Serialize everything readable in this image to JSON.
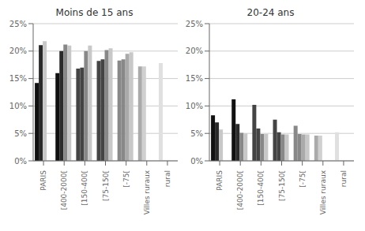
{
  "chart_data": [
    {
      "type": "bar",
      "title": "Moins de 15 ans",
      "categories": [
        "PARIS",
        "[400-2000[",
        "[150-400[",
        "[75-150[",
        "[-75[",
        "Villes ruraux",
        "rural"
      ],
      "ylim": [
        0,
        0.25
      ],
      "yticks": [
        {
          "value": 0,
          "label": "0%"
        },
        {
          "value": 0.05,
          "label": "5%"
        },
        {
          "value": 0.1,
          "label": "10%"
        },
        {
          "value": 0.15,
          "label": "15%"
        },
        {
          "value": 0.2,
          "label": "20%"
        },
        {
          "value": 0.25,
          "label": "25%"
        }
      ],
      "grid": true,
      "series": [
        {
          "values": [
            0.142,
            0.16,
            0.168,
            0.182,
            0.183,
            0.172,
            0.178
          ],
          "colors": [
            "#111111",
            "#111111",
            "#444444",
            "#444444",
            "#888888",
            "#aaaaaa",
            "#e0e0e0"
          ]
        },
        {
          "values": [
            0.211,
            0.2,
            0.17,
            0.185,
            0.185,
            0.172,
            null
          ],
          "colors": [
            "#2a2a2a",
            "#2a2a2a",
            "#444444",
            "#444444",
            "#888888",
            "#d0d0d0",
            null
          ]
        },
        {
          "values": [
            0.218,
            0.212,
            0.2,
            0.202,
            0.195,
            null,
            null
          ],
          "colors": [
            "#c8c8c8",
            "#888888",
            "#888888",
            "#888888",
            "#aaaaaa",
            null,
            null
          ]
        },
        {
          "values": [
            null,
            0.21,
            0.21,
            0.205,
            0.198,
            null,
            null
          ],
          "colors": [
            null,
            "#c8c8c8",
            "#c8c8c8",
            "#c8c8c8",
            "#c8c8c8",
            null,
            null
          ]
        }
      ]
    },
    {
      "type": "bar",
      "title": "20-24 ans",
      "categories": [
        "PARIS",
        "[400-2000[",
        "[150-400[",
        "[75-150[",
        "[-75[",
        "Villes ruraux",
        "rural"
      ],
      "ylim": [
        0,
        0.25
      ],
      "yticks": [
        {
          "value": 0,
          "label": "0%"
        },
        {
          "value": 0.05,
          "label": "5%"
        },
        {
          "value": 0.1,
          "label": "10%"
        },
        {
          "value": 0.15,
          "label": "15%"
        },
        {
          "value": 0.2,
          "label": "20%"
        },
        {
          "value": 0.25,
          "label": "25%"
        }
      ],
      "grid": true,
      "series": [
        {
          "values": [
            0.083,
            0.112,
            0.102,
            0.075,
            0.064,
            0.046,
            0.052
          ],
          "colors": [
            "#111111",
            "#111111",
            "#444444",
            "#444444",
            "#888888",
            "#aaaaaa",
            "#e0e0e0"
          ]
        },
        {
          "values": [
            0.07,
            0.067,
            0.059,
            0.052,
            0.049,
            0.046,
            null
          ],
          "colors": [
            "#2a2a2a",
            "#2a2a2a",
            "#444444",
            "#444444",
            "#888888",
            "#d0d0d0",
            null
          ]
        },
        {
          "values": [
            0.057,
            0.051,
            0.049,
            0.048,
            0.048,
            null,
            null
          ],
          "colors": [
            "#c8c8c8",
            "#888888",
            "#888888",
            "#888888",
            "#aaaaaa",
            null,
            null
          ]
        },
        {
          "values": [
            null,
            0.05,
            0.049,
            0.048,
            0.048,
            null,
            null
          ],
          "colors": [
            null,
            "#c8c8c8",
            "#c8c8c8",
            "#c8c8c8",
            "#c8c8c8",
            null,
            null
          ]
        }
      ]
    }
  ]
}
